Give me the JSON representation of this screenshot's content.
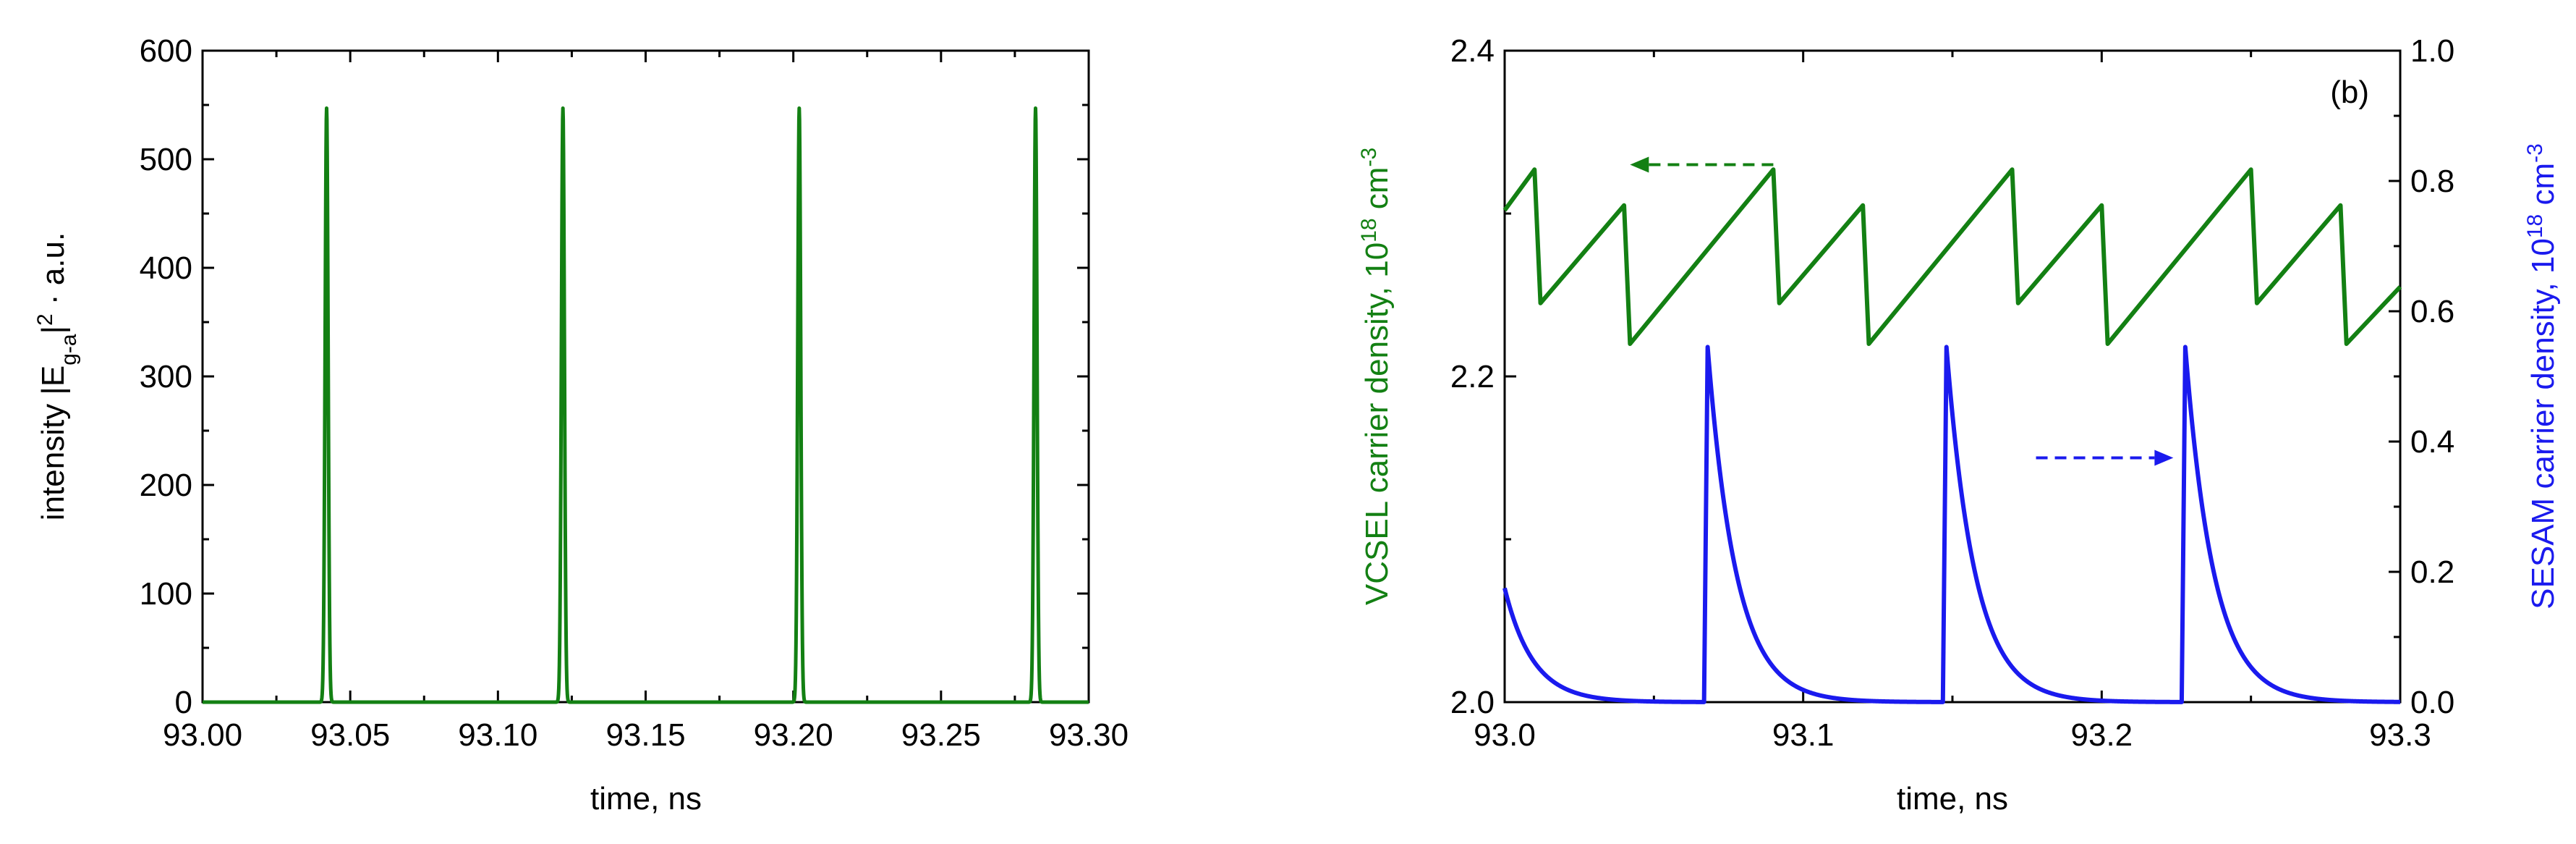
{
  "chart_data": [
    {
      "panel": "a",
      "type": "line",
      "title": "",
      "xlabel": "time, ns",
      "ylabel_parts": [
        "intensity |E",
        "g-a",
        "|",
        "2",
        " · a.u."
      ],
      "xlim": [
        93.0,
        93.3
      ],
      "ylim": [
        0,
        600
      ],
      "xticks": [
        93.0,
        93.05,
        93.1,
        93.15,
        93.2,
        93.25,
        93.3
      ],
      "xtick_labels": [
        "93.00",
        "93.05",
        "93.10",
        "93.15",
        "93.20",
        "93.25",
        "93.30"
      ],
      "yticks": [
        0,
        100,
        200,
        300,
        400,
        500,
        600
      ],
      "ytick_labels": [
        "0",
        "100",
        "200",
        "300",
        "400",
        "500",
        "600"
      ],
      "series": [
        {
          "color": "#138013",
          "pulses": [
            {
              "t": 93.042,
              "peak": 547
            },
            {
              "t": 93.122,
              "peak": 547
            },
            {
              "t": 93.202,
              "peak": 547
            },
            {
              "t": 93.282,
              "peak": 547
            }
          ],
          "pulse_width_ns": 0.0012
        }
      ]
    },
    {
      "panel": "b",
      "type": "line",
      "title": "",
      "annotation": "(b)",
      "xlabel": "time, ns",
      "ylabel_left_parts": [
        "VCSEL carrier density, 10",
        "18",
        " cm",
        "-3"
      ],
      "ylabel_right_parts": [
        "SESAM carrier density, 10",
        "18",
        " cm",
        "-3"
      ],
      "xlim": [
        93.0,
        93.3
      ],
      "ylim_left": [
        2.0,
        2.4
      ],
      "ylim_right": [
        0.0,
        1.0
      ],
      "xticks": [
        93.0,
        93.1,
        93.2,
        93.3
      ],
      "xtick_labels": [
        "93.0",
        "93.1",
        "93.2",
        "93.3"
      ],
      "yticks_left": [
        2.0,
        2.2,
        2.4
      ],
      "ytick_labels_left": [
        "2.0",
        "2.2",
        "2.4"
      ],
      "yticks_right": [
        0.0,
        0.2,
        0.4,
        0.6,
        0.8,
        1.0
      ],
      "ytick_labels_right": [
        "0.0",
        "0.2",
        "0.4",
        "0.6",
        "0.8",
        "1.0"
      ],
      "series": [
        {
          "axis": "left",
          "color": "#138013",
          "points": [
            [
              93.0,
              2.302
            ],
            [
              93.01,
              2.327
            ],
            [
              93.012,
              2.245
            ],
            [
              93.04,
              2.305
            ],
            [
              93.042,
              2.22
            ],
            [
              93.09,
              2.327
            ],
            [
              93.092,
              2.245
            ],
            [
              93.12,
              2.305
            ],
            [
              93.122,
              2.22
            ],
            [
              93.17,
              2.327
            ],
            [
              93.172,
              2.245
            ],
            [
              93.2,
              2.305
            ],
            [
              93.202,
              2.22
            ],
            [
              93.25,
              2.327
            ],
            [
              93.252,
              2.245
            ],
            [
              93.28,
              2.305
            ],
            [
              93.282,
              2.22
            ],
            [
              93.3,
              2.255
            ]
          ]
        },
        {
          "axis": "right",
          "color": "#1a1aee",
          "initial": 0.175,
          "pulses": [
            {
              "t": 93.068,
              "peak": 0.545
            },
            {
              "t": 93.148,
              "peak": 0.545
            },
            {
              "t": 93.228,
              "peak": 0.545
            }
          ],
          "decay_ns": 0.0095
        }
      ],
      "arrows": [
        {
          "axis": "left",
          "from": [
            93.09,
            2.33
          ],
          "to": [
            93.042,
            2.33
          ],
          "color": "#138013"
        },
        {
          "axis": "right",
          "from": [
            93.178,
            0.375
          ],
          "to": [
            93.224,
            0.375
          ],
          "color": "#1a1aee"
        }
      ]
    }
  ]
}
